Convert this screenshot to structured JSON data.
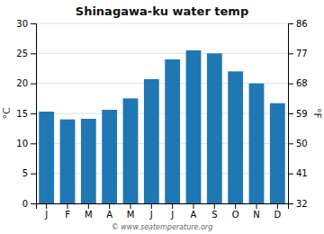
{
  "chart_data": {
    "type": "bar",
    "title": "Shinagawa-ku water temp",
    "categories": [
      "J",
      "F",
      "M",
      "A",
      "M",
      "J",
      "J",
      "A",
      "S",
      "O",
      "N",
      "D"
    ],
    "values": [
      15.3,
      14.0,
      14.1,
      15.6,
      17.5,
      20.7,
      24.0,
      25.5,
      25.0,
      22.0,
      20.0,
      16.7
    ],
    "ylabel": "°C",
    "y2label": "°F",
    "ylim": [
      0,
      30
    ],
    "yticks": [
      0,
      5,
      10,
      15,
      20,
      25,
      30
    ],
    "y2lim": [
      32,
      86
    ],
    "y2ticks": [
      32,
      41,
      50,
      59,
      68,
      77,
      86
    ],
    "grid": true,
    "annotations": [
      "© www.seatemperature.org"
    ]
  }
}
